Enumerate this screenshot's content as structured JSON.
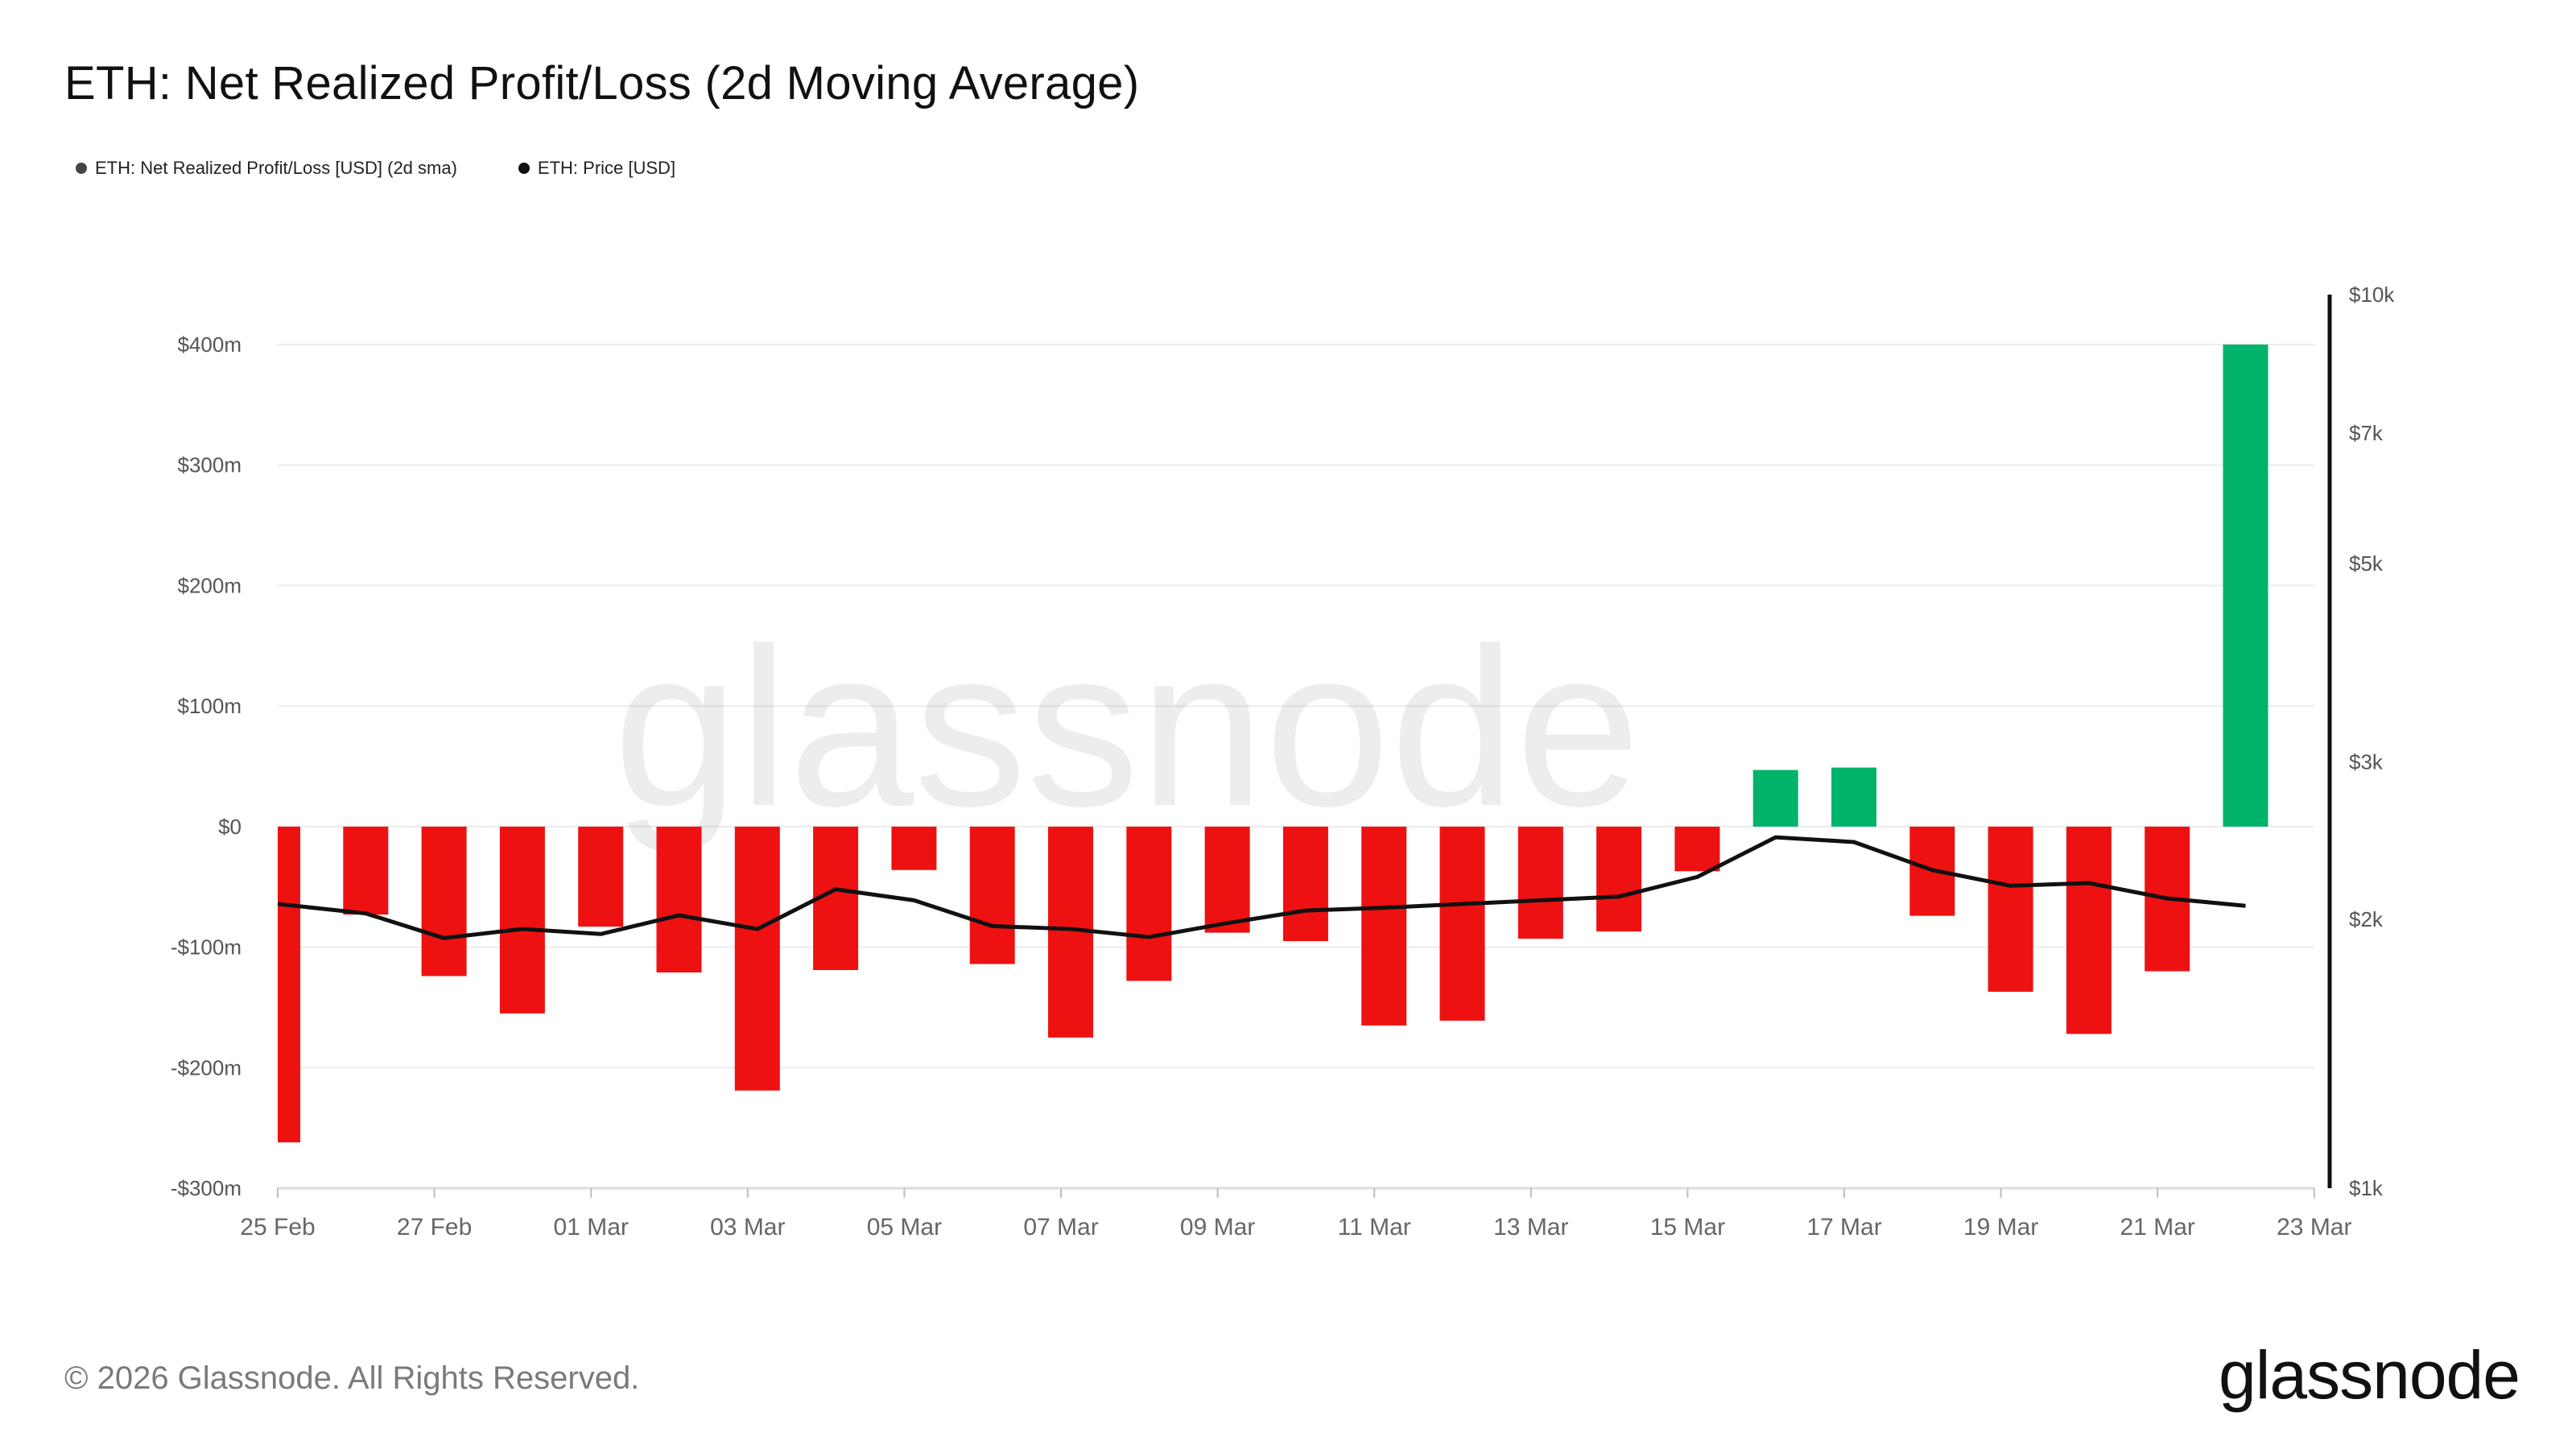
{
  "title": "ETH: Net Realized Profit/Loss (2d Moving Average)",
  "legend": [
    {
      "label": "ETH: Net Realized Profit/Loss [USD] (2d sma)",
      "color": "#444444"
    },
    {
      "label": "ETH: Price [USD]",
      "color": "#111111"
    }
  ],
  "watermark": "glassnode",
  "copyright": "© 2026 Glassnode. All Rights Reserved.",
  "brand": "glassnode",
  "colors": {
    "positive": "#00b36b",
    "negative": "#ee1111",
    "price_line": "#111111"
  },
  "chart_data": {
    "type": "bar",
    "title": "ETH: Net Realized Profit/Loss (2d Moving Average)",
    "x_tick_labels": [
      "25 Feb",
      "27 Feb",
      "01 Mar",
      "03 Mar",
      "05 Mar",
      "07 Mar",
      "09 Mar",
      "11 Mar",
      "13 Mar",
      "15 Mar",
      "17 Mar",
      "19 Mar",
      "21 Mar",
      "23 Mar"
    ],
    "y_left": {
      "ticks": [
        400,
        300,
        200,
        100,
        0,
        -100,
        -200,
        -300
      ],
      "tick_labels": [
        "$400m",
        "$300m",
        "$200m",
        "$100m",
        "$0",
        "-$100m",
        "-$200m",
        "-$300m"
      ],
      "ylim": [
        -300,
        400
      ],
      "unit": "USD millions"
    },
    "y_right": {
      "scale": "log",
      "ticks": [
        10000,
        7000,
        5000,
        3000,
        2000,
        1000
      ],
      "tick_labels": [
        "$10k",
        "$7k",
        "$5k",
        "$3k",
        "$2k",
        "$1k"
      ],
      "ylim": [
        1000,
        10000
      ]
    },
    "grid": true,
    "legend_position": "top-left",
    "series": [
      {
        "name": "ETH: Net Realized Profit/Loss [USD] (2d sma)",
        "type": "bar",
        "axis": "left",
        "x": [
          "25 Feb",
          "26 Feb",
          "27 Feb",
          "28 Feb",
          "01 Mar",
          "02 Mar",
          "03 Mar",
          "04 Mar",
          "05 Mar",
          "06 Mar",
          "07 Mar",
          "08 Mar",
          "09 Mar",
          "10 Mar",
          "11 Mar",
          "12 Mar",
          "13 Mar",
          "14 Mar",
          "15 Mar",
          "16 Mar",
          "17 Mar",
          "18 Mar",
          "19 Mar",
          "20 Mar",
          "21 Mar",
          "22 Mar"
        ],
        "values": [
          -262,
          -73,
          -124,
          -155,
          -83,
          -121,
          -219,
          -119,
          -36,
          -114,
          -175,
          -128,
          -88,
          -95,
          -165,
          -161,
          -93,
          -87,
          -37,
          47,
          49,
          -74,
          -137,
          -172,
          -120,
          400
        ]
      },
      {
        "name": "ETH: Price [USD]",
        "type": "line",
        "axis": "right",
        "x": [
          "25 Feb",
          "26 Feb",
          "27 Feb",
          "28 Feb",
          "01 Mar",
          "02 Mar",
          "03 Mar",
          "04 Mar",
          "05 Mar",
          "06 Mar",
          "07 Mar",
          "08 Mar",
          "09 Mar",
          "10 Mar",
          "11 Mar",
          "12 Mar",
          "13 Mar",
          "14 Mar",
          "15 Mar",
          "16 Mar",
          "17 Mar",
          "18 Mar",
          "19 Mar",
          "20 Mar",
          "21 Mar",
          "22 Mar"
        ],
        "values": [
          2080,
          2030,
          1905,
          1950,
          1925,
          2020,
          1950,
          2160,
          2100,
          1965,
          1950,
          1910,
          1980,
          2045,
          2060,
          2080,
          2100,
          2120,
          2230,
          2470,
          2440,
          2270,
          2180,
          2195,
          2110,
          2070
        ]
      }
    ]
  }
}
